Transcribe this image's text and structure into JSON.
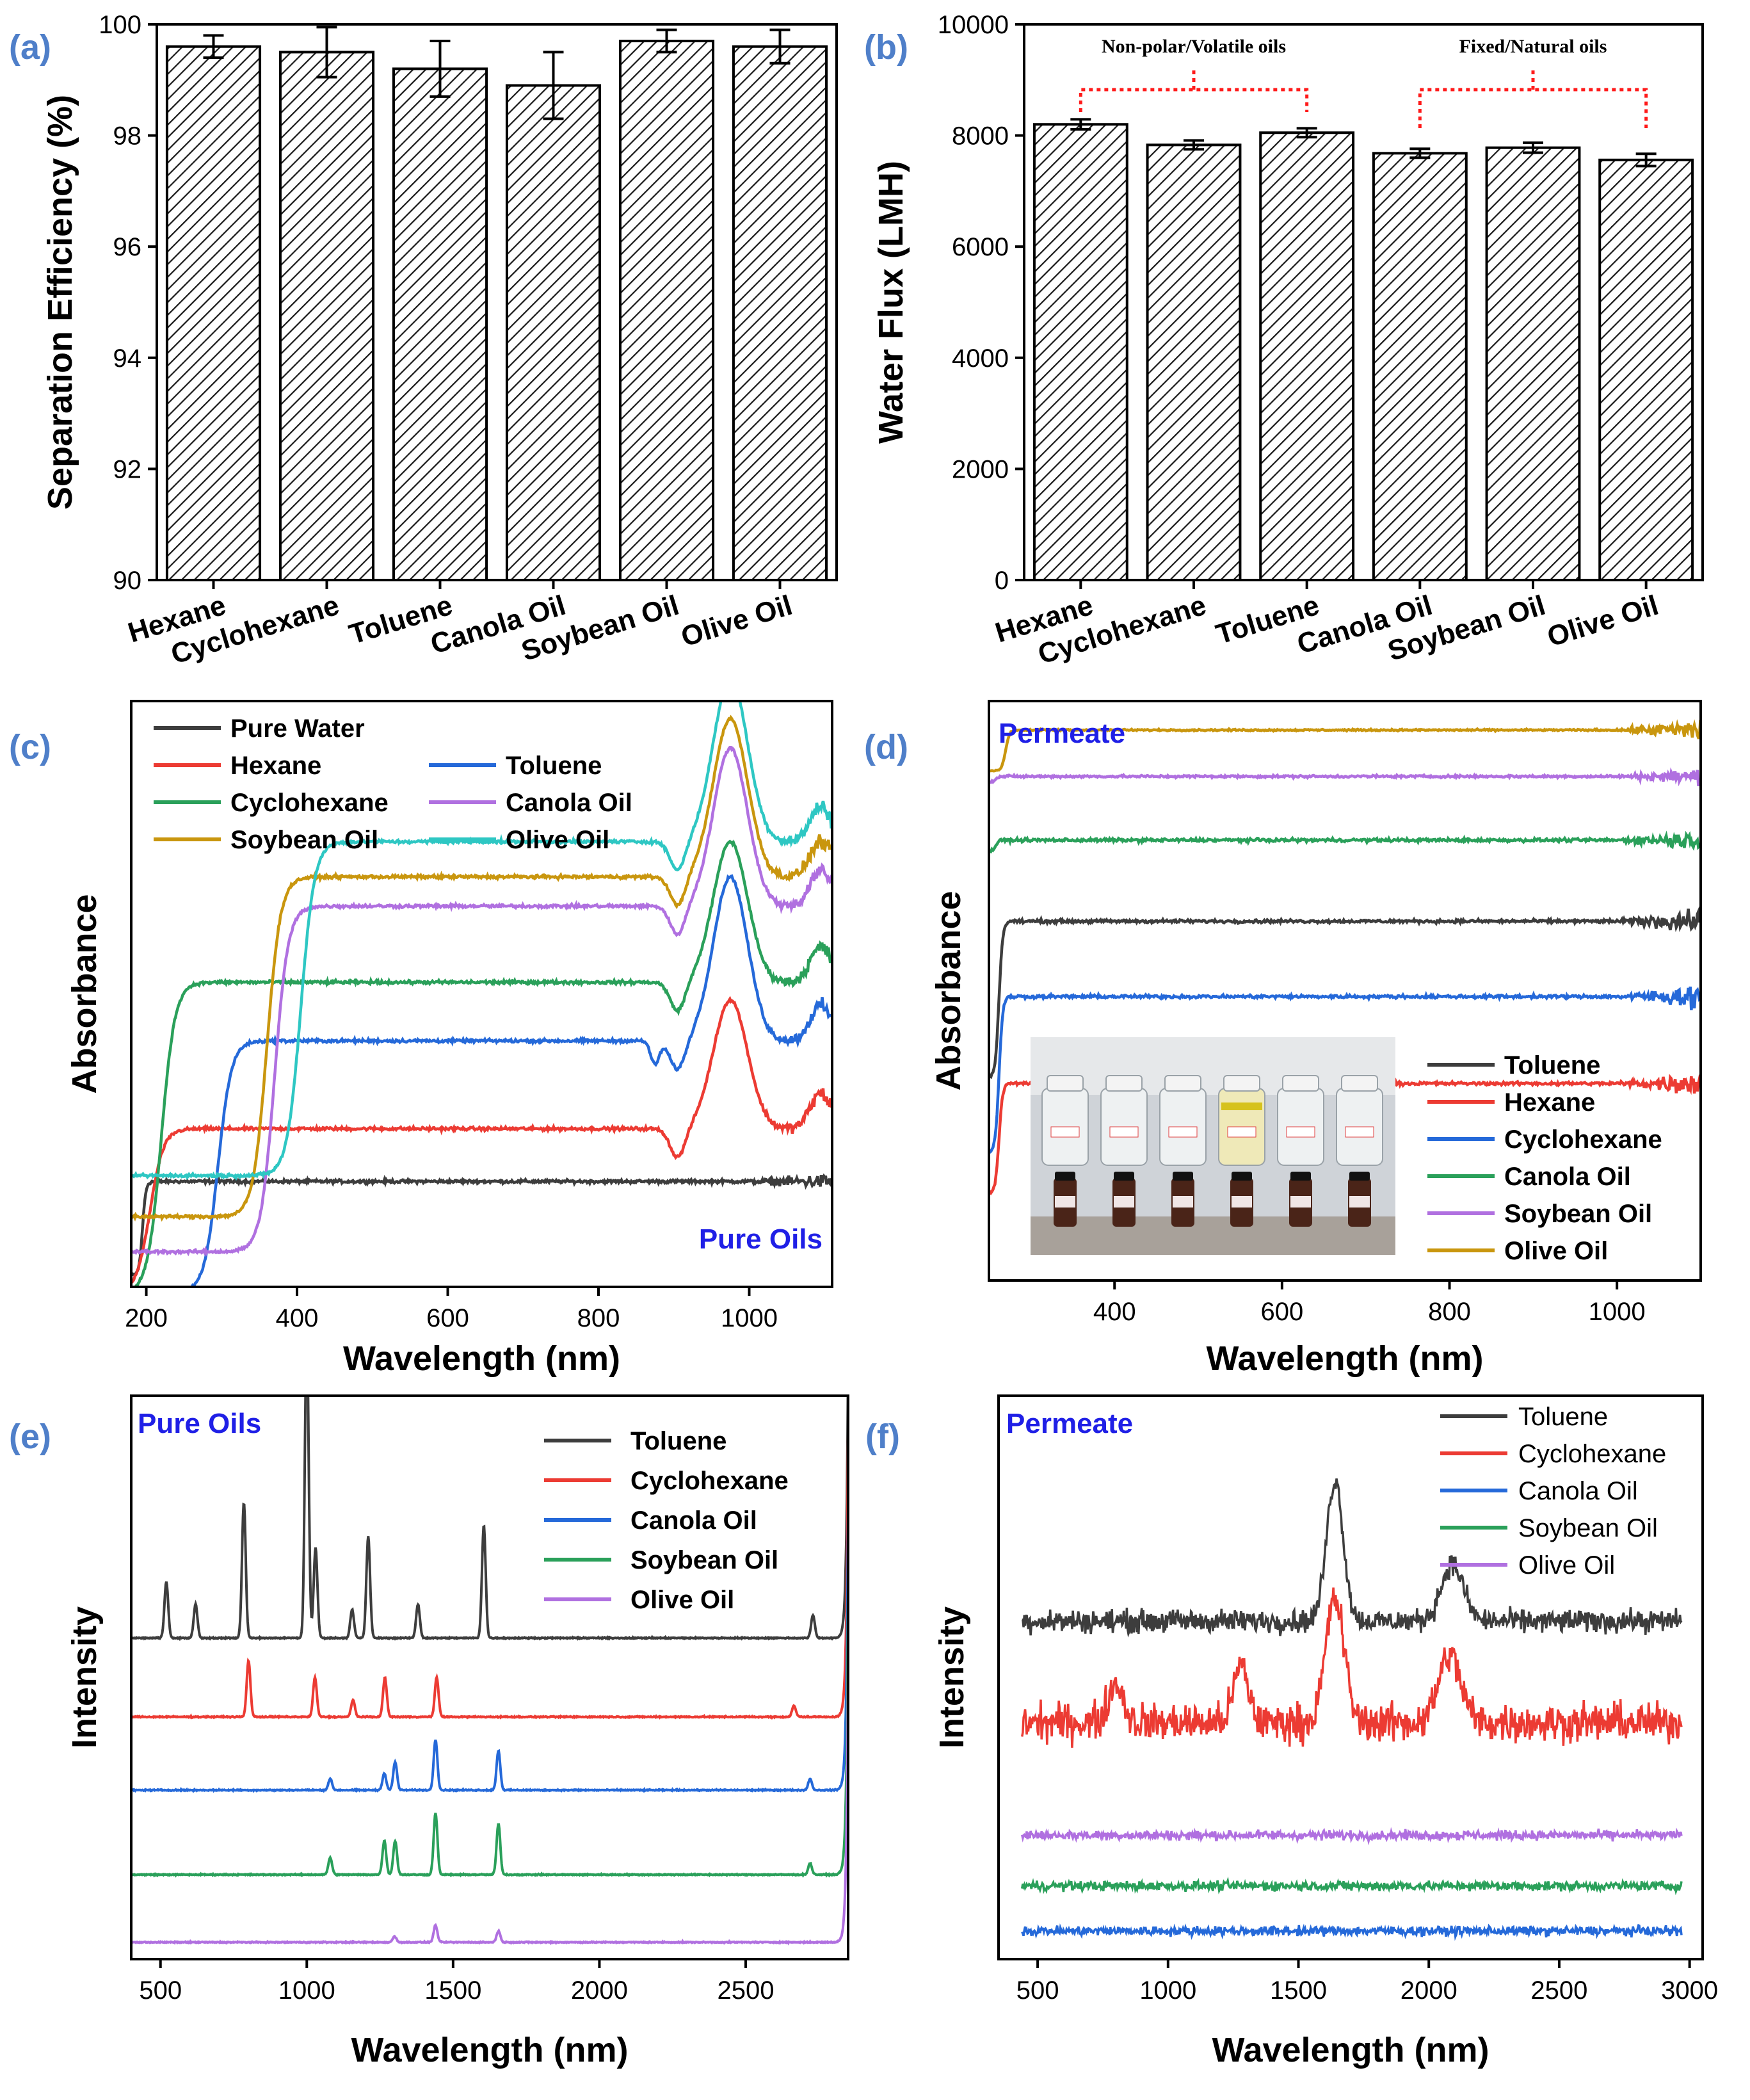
{
  "figure": {
    "panels": [
      {
        "id": "a",
        "label": "(a)",
        "type": "bar",
        "ylabel": "Separation Efficiency (%)",
        "ylim": [
          90,
          100
        ],
        "yticks": [
          90,
          92,
          94,
          96,
          98,
          100
        ],
        "categories": [
          "Hexane",
          "Cyclohexane",
          "Toluene",
          "Canola Oil",
          "Soybean Oil",
          "Olive Oil"
        ],
        "values": [
          99.6,
          99.5,
          99.2,
          98.9,
          99.7,
          99.6
        ],
        "errors": [
          0.2,
          0.45,
          0.5,
          0.6,
          0.2,
          0.3
        ],
        "bar_pattern": "hatch"
      },
      {
        "id": "b",
        "label": "(b)",
        "type": "bar",
        "ylabel": "Water Flux (LMH)",
        "ylim": [
          0,
          10000
        ],
        "yticks": [
          0,
          2000,
          4000,
          6000,
          8000,
          10000
        ],
        "categories": [
          "Hexane",
          "Cyclohexane",
          "Toluene",
          "Canola Oil",
          "Soybean Oil",
          "Olive Oil"
        ],
        "values": [
          8200,
          7830,
          8050,
          7680,
          7780,
          7560
        ],
        "errors": [
          90,
          80,
          80,
          80,
          90,
          110
        ],
        "groups": [
          {
            "label": "Non-polar/Volatile oils",
            "from": 0,
            "to": 2
          },
          {
            "label": "Fixed/Natural oils",
            "from": 3,
            "to": 5
          }
        ]
      },
      {
        "id": "c",
        "label": "(c)",
        "type": "line",
        "xlabel": "Wavelength (nm)",
        "ylabel": "Absorbance",
        "xlim": [
          180,
          1110
        ],
        "xticks": [
          200,
          400,
          600,
          800,
          1000
        ],
        "annotation": "Pure Oils",
        "legend_position": "top-left",
        "legend_columns": 2,
        "legend": [
          {
            "name": "Pure Water",
            "color": "#3d3d3d"
          },
          {
            "name": "Hexane",
            "color": "#ec3b33"
          },
          {
            "name": "Toluene",
            "color": "#2569d9"
          },
          {
            "name": "Cyclohexane",
            "color": "#2aa05a"
          },
          {
            "name": "Canola Oil",
            "color": "#b070e0"
          },
          {
            "name": "Soybean Oil",
            "color": "#c9960e"
          },
          {
            "name": "Olive Oil",
            "color": "#2ec7c3"
          }
        ]
      },
      {
        "id": "d",
        "label": "(d)",
        "type": "line",
        "xlabel": "Wavelength (nm)",
        "ylabel": "Absorbance",
        "xlim": [
          250,
          1100
        ],
        "xticks": [
          400,
          600,
          800,
          1000
        ],
        "annotation": "Permeate",
        "legend_position": "bottom-right",
        "inset_photo": "photo of six permeate sample vials",
        "legend": [
          {
            "name": "Toluene",
            "color": "#3d3d3d"
          },
          {
            "name": "Hexane",
            "color": "#ec3b33"
          },
          {
            "name": "Cyclohexane",
            "color": "#2569d9"
          },
          {
            "name": "Canola Oil",
            "color": "#2aa05a"
          },
          {
            "name": "Soybean Oil",
            "color": "#b070e0"
          },
          {
            "name": "Olive Oil",
            "color": "#c9960e"
          }
        ]
      },
      {
        "id": "e",
        "label": "(e)",
        "type": "line",
        "xlabel": "Wavelength (nm)",
        "ylabel": "Intensity",
        "xlim": [
          400,
          2850
        ],
        "xticks": [
          500,
          1000,
          1500,
          2000,
          2500
        ],
        "annotation": "Pure Oils",
        "legend_position": "top-right",
        "legend": [
          {
            "name": "Toluene",
            "color": "#3d3d3d"
          },
          {
            "name": "Cyclohexane",
            "color": "#ec3b33"
          },
          {
            "name": "Canola Oil",
            "color": "#2569d9"
          },
          {
            "name": "Soybean Oil",
            "color": "#2aa05a"
          },
          {
            "name": "Olive Oil",
            "color": "#b070e0"
          }
        ]
      },
      {
        "id": "f",
        "label": "(f)",
        "type": "line",
        "xlabel": "Wavelength (nm)",
        "ylabel": "Intensity",
        "xlim": [
          350,
          3050
        ],
        "xticks": [
          500,
          1000,
          1500,
          2000,
          2500,
          3000
        ],
        "annotation": "Permeate",
        "legend_position": "top-right",
        "legend": [
          {
            "name": "Toluene",
            "color": "#3d3d3d"
          },
          {
            "name": "Cyclohexane",
            "color": "#ec3b33"
          },
          {
            "name": "Canola Oil",
            "color": "#2569d9"
          },
          {
            "name": "Soybean Oil",
            "color": "#2aa05a"
          },
          {
            "name": "Olive Oil",
            "color": "#b070e0"
          }
        ]
      }
    ]
  },
  "chart_data": [
    {
      "type": "bar",
      "categories": [
        "Hexane",
        "Cyclohexane",
        "Toluene",
        "Canola Oil",
        "Soybean Oil",
        "Olive Oil"
      ],
      "values": [
        99.6,
        99.5,
        99.2,
        98.9,
        99.7,
        99.6
      ],
      "errors": [
        0.2,
        0.45,
        0.5,
        0.6,
        0.2,
        0.3
      ],
      "ylabel": "Separation Efficiency (%)",
      "ylim": [
        90,
        100
      ]
    },
    {
      "type": "bar",
      "categories": [
        "Hexane",
        "Cyclohexane",
        "Toluene",
        "Canola Oil",
        "Soybean Oil",
        "Olive Oil"
      ],
      "values": [
        8200,
        7830,
        8050,
        7680,
        7780,
        7560
      ],
      "errors": [
        90,
        80,
        80,
        80,
        90,
        110
      ],
      "ylabel": "Water Flux (LMH)",
      "ylim": [
        0,
        10000
      ]
    },
    {
      "type": "line",
      "xlabel": "Wavelength (nm)",
      "ylabel": "Absorbance",
      "xlim": [
        180,
        1110
      ],
      "series": [
        {
          "name": "Pure Water",
          "shape": "flat",
          "x_edge": 195,
          "level": 0.18,
          "base": 0.02,
          "noise": 0.004,
          "noise_end": 0.02
        },
        {
          "name": "Hexane",
          "shape": "step",
          "x_edge": 205,
          "level": 0.28,
          "base": 0.0,
          "peak": 0.22,
          "noise": 0.004,
          "noise_end": 0.02
        },
        {
          "name": "Toluene",
          "shape": "step",
          "x_edge": 295,
          "level": 0.43,
          "base": 0.0,
          "peak": 0.28,
          "dip": 0.04,
          "noise": 0.004,
          "noise_end": 0.02
        },
        {
          "name": "Cyclohexane",
          "shape": "step",
          "x_edge": 220,
          "level": 0.53,
          "base": 0.0,
          "peak": 0.24,
          "noise": 0.004,
          "noise_end": 0.02
        },
        {
          "name": "Canola Oil",
          "shape": "step",
          "x_edge": 370,
          "level": 0.66,
          "base": 0.07,
          "peak": 0.27,
          "noise": 0.004,
          "noise_end": 0.02
        },
        {
          "name": "Soybean Oil",
          "shape": "step",
          "x_edge": 360,
          "level": 0.71,
          "base": 0.13,
          "peak": 0.27,
          "noise": 0.004,
          "noise_end": 0.02
        },
        {
          "name": "Olive Oil",
          "shape": "step",
          "x_edge": 405,
          "level": 0.77,
          "base": 0.2,
          "peak": 0.28,
          "noise": 0.004,
          "noise_end": 0.02
        }
      ]
    },
    {
      "type": "line",
      "xlabel": "Wavelength (nm)",
      "ylabel": "Absorbance",
      "xlim": [
        250,
        1100
      ],
      "series": [
        {
          "name": "Toluene",
          "shape": "flat",
          "x_edge": 262,
          "level": 0.62,
          "base": 0.35,
          "noise": 0.004,
          "noise_end": 0.03
        },
        {
          "name": "Hexane",
          "shape": "flat",
          "x_edge": 262,
          "level": 0.34,
          "base": 0.15,
          "noise": 0.004,
          "noise_end": 0.03
        },
        {
          "name": "Cyclohexane",
          "shape": "flat",
          "x_edge": 262,
          "level": 0.49,
          "base": 0.22,
          "noise": 0.004,
          "noise_end": 0.03
        },
        {
          "name": "Canola Oil",
          "shape": "flat",
          "x_edge": 258,
          "level": 0.76,
          "base": 0.74,
          "noise": 0.004,
          "noise_end": 0.025
        },
        {
          "name": "Soybean Oil",
          "shape": "flat",
          "x_edge": 258,
          "level": 0.87,
          "base": 0.86,
          "noise": 0.003,
          "noise_end": 0.02
        },
        {
          "name": "Olive Oil",
          "shape": "flat",
          "x_edge": 270,
          "level": 0.95,
          "base": 0.88,
          "noise": 0.002,
          "noise_end": 0.03
        }
      ]
    },
    {
      "type": "line",
      "xlabel": "Wavelength (nm)",
      "ylabel": "Intensity",
      "xlim": [
        400,
        2850
      ],
      "series": [
        {
          "name": "Toluene",
          "baseline": 0.57,
          "peaks": [
            [
              520,
              0.1
            ],
            [
              620,
              0.06
            ],
            [
              785,
              0.24
            ],
            [
              1000,
              0.55
            ],
            [
              1030,
              0.16
            ],
            [
              1155,
              0.05
            ],
            [
              1210,
              0.18
            ],
            [
              1380,
              0.06
            ],
            [
              1605,
              0.2
            ],
            [
              2730,
              0.04
            ]
          ]
        },
        {
          "name": "Cyclohexane",
          "baseline": 0.43,
          "peaks": [
            [
              801,
              0.1
            ],
            [
              1028,
              0.07
            ],
            [
              1158,
              0.03
            ],
            [
              1267,
              0.07
            ],
            [
              1444,
              0.07
            ],
            [
              2665,
              0.02
            ]
          ]
        },
        {
          "name": "Canola Oil",
          "baseline": 0.3,
          "peaks": [
            [
              1080,
              0.02
            ],
            [
              1265,
              0.03
            ],
            [
              1302,
              0.05
            ],
            [
              1440,
              0.09
            ],
            [
              1655,
              0.07
            ],
            [
              2720,
              0.02
            ]
          ]
        },
        {
          "name": "Soybean Oil",
          "baseline": 0.15,
          "peaks": [
            [
              1080,
              0.03
            ],
            [
              1265,
              0.06
            ],
            [
              1302,
              0.06
            ],
            [
              1440,
              0.11
            ],
            [
              1655,
              0.09
            ],
            [
              2720,
              0.02
            ]
          ]
        },
        {
          "name": "Olive Oil",
          "baseline": 0.03,
          "peaks": [
            [
              1300,
              0.01
            ],
            [
              1440,
              0.03
            ],
            [
              1655,
              0.02
            ]
          ]
        }
      ]
    },
    {
      "type": "line",
      "xlabel": "Wavelength (nm)",
      "ylabel": "Intensity",
      "xlim": [
        350,
        3050
      ],
      "series": [
        {
          "name": "Toluene",
          "baseline": 0.6,
          "noise": 0.03,
          "bands": [
            [
              1640,
              0.25,
              45
            ],
            [
              2090,
              0.1,
              60
            ]
          ]
        },
        {
          "name": "Cyclohexane",
          "baseline": 0.42,
          "noise": 0.05,
          "bands": [
            [
              1640,
              0.22,
              50
            ],
            [
              2080,
              0.12,
              60
            ],
            [
              1280,
              0.1,
              40
            ],
            [
              800,
              0.07,
              40
            ]
          ]
        },
        {
          "name": "Canola Oil",
          "baseline": 0.05,
          "noise": 0.012,
          "bands": []
        },
        {
          "name": "Soybean Oil",
          "baseline": 0.13,
          "noise": 0.012,
          "bands": []
        },
        {
          "name": "Olive Oil",
          "baseline": 0.22,
          "noise": 0.012,
          "bands": []
        }
      ]
    }
  ]
}
